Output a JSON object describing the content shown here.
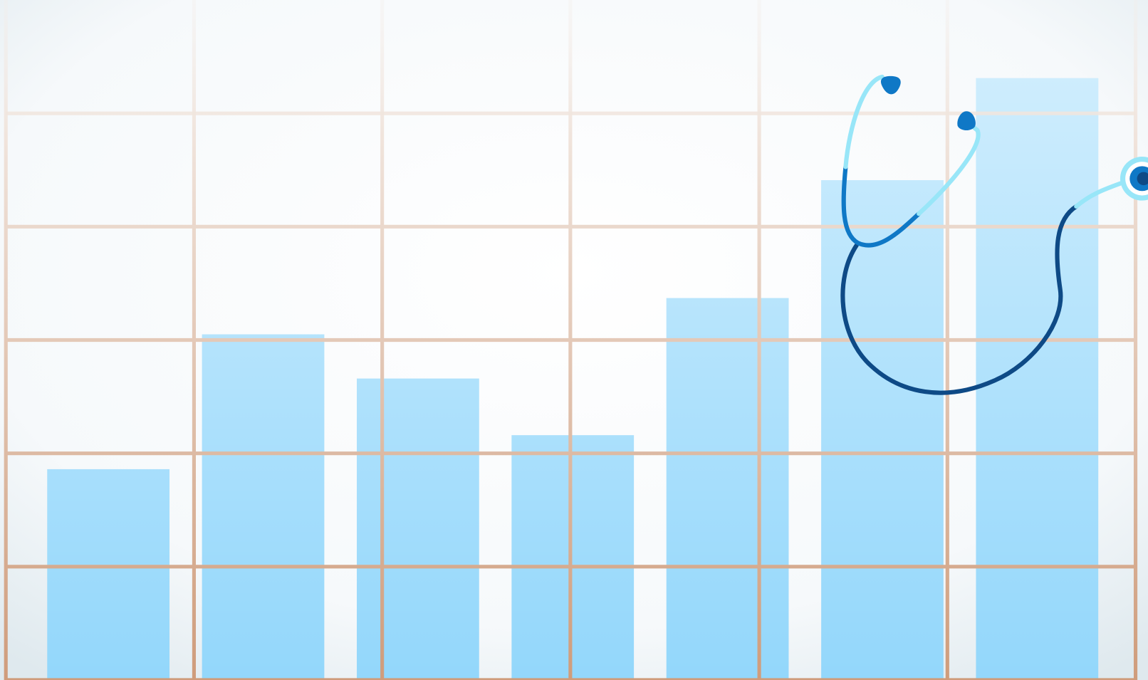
{
  "chart_data": {
    "type": "bar",
    "values": [
      1.86,
      3.05,
      2.66,
      2.16,
      3.37,
      4.41,
      5.31
    ],
    "color": "#93d7fb",
    "ylim": [
      0,
      6
    ],
    "yticks": [
      0,
      1,
      2,
      3,
      4,
      5
    ],
    "grid": true
  }
}
